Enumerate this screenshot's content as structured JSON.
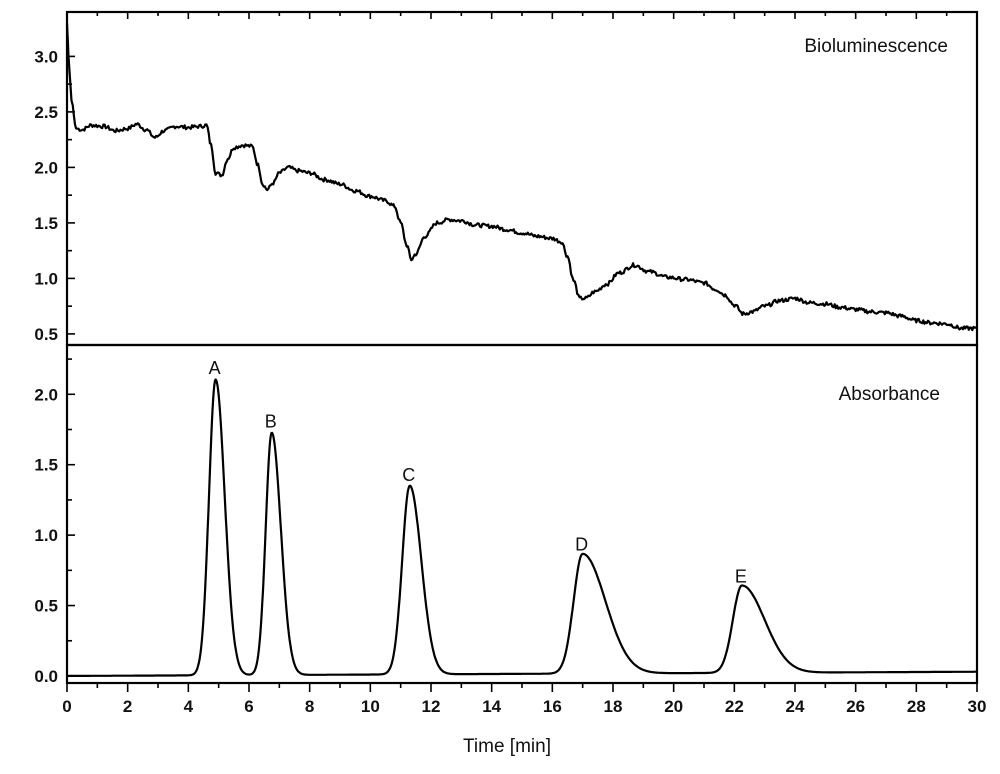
{
  "chart_data": [
    {
      "type": "line",
      "panel": "top",
      "title": "Bioluminescence",
      "xlabel": "",
      "ylabel": "",
      "xlim": [
        0,
        30
      ],
      "ylim": [
        0.4,
        3.4
      ],
      "yticks": [
        0.5,
        1.0,
        1.5,
        2.0,
        2.5,
        3.0
      ],
      "ytick_labels": [
        "0.5",
        "1.0",
        "1.5",
        "2.0",
        "2.5",
        "3.0"
      ],
      "grid": false,
      "series": [
        {
          "x": [
            0,
            0.05,
            0.15,
            0.3,
            0.5,
            0.8,
            1.2,
            1.6,
            2.0,
            2.3,
            2.6,
            2.9,
            3.2,
            3.6,
            4.0,
            4.4,
            4.6,
            4.75,
            4.9,
            5.1,
            5.3,
            5.5,
            5.8,
            6.1,
            6.3,
            6.45,
            6.6,
            6.8,
            7.0,
            7.3,
            7.6,
            8.0,
            8.5,
            9.0,
            9.5,
            10.0,
            10.5,
            10.8,
            11.0,
            11.2,
            11.35,
            11.5,
            11.8,
            12.2,
            12.6,
            13.0,
            13.5,
            14.0,
            14.5,
            15.0,
            15.5,
            16.0,
            16.3,
            16.5,
            16.7,
            16.9,
            17.1,
            17.4,
            17.8,
            18.2,
            18.7,
            19.2,
            19.8,
            20.4,
            21.0,
            21.4,
            21.7,
            22.0,
            22.3,
            22.6,
            23.0,
            23.5,
            24.0,
            24.5,
            25.0,
            25.5,
            26.0,
            26.5,
            27.0,
            27.5,
            28.0,
            28.5,
            29.0,
            29.5,
            30.0
          ],
          "y": [
            3.3,
            3.0,
            2.6,
            2.35,
            2.34,
            2.38,
            2.37,
            2.33,
            2.35,
            2.39,
            2.34,
            2.27,
            2.33,
            2.37,
            2.36,
            2.37,
            2.38,
            2.2,
            1.95,
            1.93,
            2.08,
            2.18,
            2.2,
            2.19,
            2.02,
            1.85,
            1.8,
            1.86,
            1.95,
            2.0,
            1.97,
            1.95,
            1.89,
            1.85,
            1.79,
            1.74,
            1.7,
            1.65,
            1.5,
            1.3,
            1.17,
            1.22,
            1.38,
            1.5,
            1.53,
            1.52,
            1.48,
            1.47,
            1.44,
            1.41,
            1.38,
            1.36,
            1.33,
            1.2,
            0.98,
            0.82,
            0.82,
            0.88,
            0.95,
            1.05,
            1.12,
            1.06,
            1.01,
            0.99,
            0.96,
            0.9,
            0.85,
            0.76,
            0.68,
            0.7,
            0.75,
            0.8,
            0.82,
            0.78,
            0.77,
            0.74,
            0.72,
            0.7,
            0.69,
            0.66,
            0.62,
            0.6,
            0.59,
            0.55,
            0.55
          ]
        }
      ]
    },
    {
      "type": "line",
      "panel": "bottom",
      "title": "Absorbance",
      "xlabel": "Time [min]",
      "ylabel": "",
      "xlim": [
        0,
        30
      ],
      "ylim": [
        -0.05,
        2.35
      ],
      "yticks": [
        0.0,
        0.5,
        1.0,
        1.5,
        2.0
      ],
      "ytick_labels": [
        "0.0",
        "0.5",
        "1.0",
        "1.5",
        "2.0"
      ],
      "xticks": [
        0,
        2,
        4,
        6,
        8,
        10,
        12,
        14,
        16,
        18,
        20,
        22,
        24,
        26,
        28,
        30
      ],
      "xtick_labels": [
        "0",
        "2",
        "4",
        "6",
        "8",
        "10",
        "12",
        "14",
        "16",
        "18",
        "20",
        "22",
        "24",
        "26",
        "28",
        "30"
      ],
      "grid": false,
      "peaks": [
        {
          "label": "A",
          "x": 4.9,
          "y": 2.1,
          "width": 0.22,
          "tail": 0.3
        },
        {
          "label": "B",
          "x": 6.75,
          "y": 1.72,
          "width": 0.2,
          "tail": 0.3
        },
        {
          "label": "C",
          "x": 11.3,
          "y": 1.34,
          "width": 0.25,
          "tail": 0.38
        },
        {
          "label": "D",
          "x": 17.0,
          "y": 0.85,
          "width": 0.3,
          "tail": 0.75
        },
        {
          "label": "E",
          "x": 22.25,
          "y": 0.62,
          "width": 0.3,
          "tail": 0.75
        }
      ],
      "baseline": [
        0.0,
        0.03
      ]
    }
  ]
}
